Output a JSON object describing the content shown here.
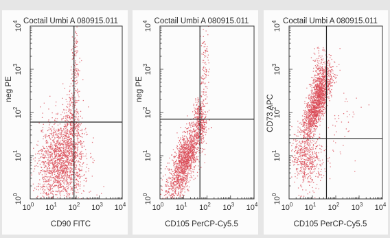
{
  "chart_data": [
    {
      "type": "scatter",
      "title": "Coctail Umbi A 080915.011",
      "xlabel": "CD90 FITC",
      "ylabel": "neg PE",
      "xscale": "log",
      "yscale": "log",
      "xlim": [
        1,
        10000
      ],
      "ylim": [
        1,
        10000
      ],
      "ticks": [
        "10^0",
        "10^1",
        "10^2",
        "10^3",
        "10^4"
      ],
      "gate": {
        "x": 80,
        "y": 60
      },
      "color": "#d94a55",
      "clusters": [
        {
          "cx": 25,
          "cy": 8,
          "sx": 0.5,
          "sy": 0.45,
          "n": 1600
        },
        {
          "cx": 70,
          "cy": 60,
          "sx": 0.18,
          "sy": 0.5,
          "n": 300
        },
        {
          "cx": 90,
          "cy": 1500,
          "sx": 0.08,
          "sy": 0.45,
          "n": 120
        },
        {
          "cx": 5,
          "cy": 1.5,
          "sx": 0.3,
          "sy": 0.15,
          "n": 80
        }
      ]
    },
    {
      "type": "scatter",
      "title": "Coctail Umbi A 080915.011",
      "xlabel": "CD105 PerCP-Cy5.5",
      "ylabel": "neg PE",
      "xscale": "log",
      "yscale": "log",
      "xlim": [
        1,
        10000
      ],
      "ylim": [
        1,
        10000
      ],
      "ticks": [
        "10^0",
        "10^1",
        "10^2",
        "10^3",
        "10^4"
      ],
      "gate": {
        "x": 50,
        "y": 70
      },
      "color": "#d94a55",
      "clusters": [
        {
          "cx": 12,
          "cy": 8,
          "sx": 0.35,
          "sy": 0.45,
          "n": 1500,
          "corr": 0.7
        },
        {
          "cx": 50,
          "cy": 60,
          "sx": 0.12,
          "sy": 0.3,
          "n": 300
        },
        {
          "cx": 80,
          "cy": 1200,
          "sx": 0.1,
          "sy": 0.45,
          "n": 90
        },
        {
          "cx": 3,
          "cy": 1.5,
          "sx": 0.25,
          "sy": 0.15,
          "n": 60
        }
      ]
    },
    {
      "type": "scatter",
      "title": "Coctail Umbi A 080915.011",
      "xlabel": "CD105 PerCP-Cy5.5",
      "ylabel": "CD73 APC",
      "xscale": "log",
      "yscale": "log",
      "xlim": [
        1,
        10000
      ],
      "ylim": [
        1,
        10000
      ],
      "ticks": [
        "10^0",
        "10^1",
        "10^2",
        "10^3",
        "10^4"
      ],
      "gate": {
        "x": 40,
        "y": 25
      },
      "color": "#d94a55",
      "clusters": [
        {
          "cx": 15,
          "cy": 150,
          "sx": 0.3,
          "sy": 0.4,
          "n": 1400,
          "corr": 0.75
        },
        {
          "cx": 6,
          "cy": 8,
          "sx": 0.35,
          "sy": 0.35,
          "n": 500
        },
        {
          "cx": 25,
          "cy": 700,
          "sx": 0.2,
          "sy": 0.3,
          "n": 300
        },
        {
          "cx": 200,
          "cy": 60,
          "sx": 0.35,
          "sy": 0.4,
          "n": 40
        }
      ]
    }
  ]
}
